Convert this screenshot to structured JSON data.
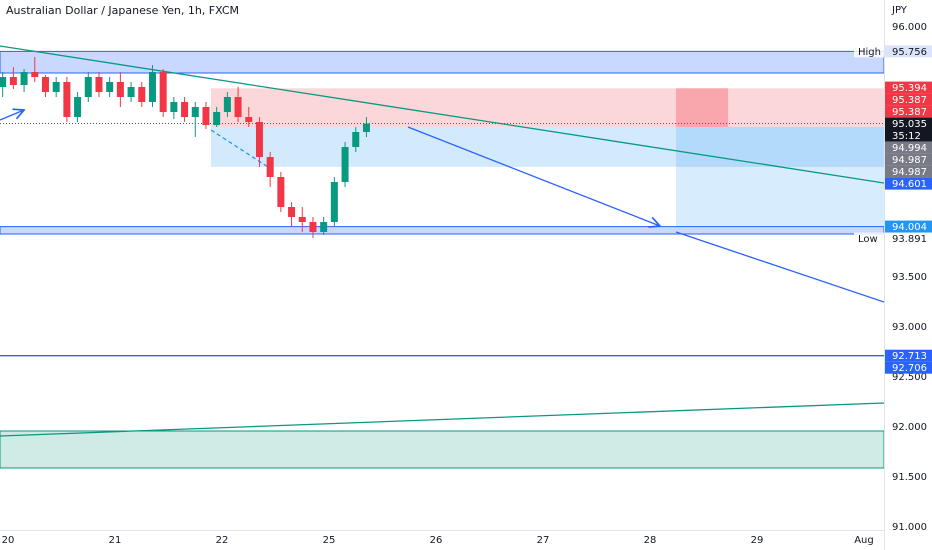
{
  "chart_data": {
    "type": "candlestick",
    "title": "Australian Dollar / Japanese Yen, 1h, FXCM",
    "currency": "JPY",
    "up_color": "#089981",
    "down_color": "#f23645",
    "xlim": [
      -0.075,
      8.187
    ],
    "ylim": [
      90.77,
      96.27
    ],
    "xticks": [
      {
        "value": 0,
        "label": "20"
      },
      {
        "value": 1,
        "label": "21"
      },
      {
        "value": 2,
        "label": "22"
      },
      {
        "value": 3,
        "label": "25"
      },
      {
        "value": 4,
        "label": "26"
      },
      {
        "value": 5,
        "label": "27"
      },
      {
        "value": 6,
        "label": "28"
      },
      {
        "value": 7,
        "label": "29"
      },
      {
        "value": 8,
        "label": "Aug"
      }
    ],
    "yticks": [
      {
        "value": 96,
        "label": "96.000"
      },
      {
        "value": 93.5,
        "label": "93.500"
      },
      {
        "value": 93,
        "label": "93.000"
      },
      {
        "value": 92.5,
        "label": "92.500"
      },
      {
        "value": 92,
        "label": "92.000"
      },
      {
        "value": 91.5,
        "label": "91.500"
      },
      {
        "value": 91,
        "label": "91.000"
      }
    ],
    "x": [
      -0.05,
      0.05,
      0.15,
      0.25,
      0.35,
      0.45,
      0.55,
      0.65,
      0.75,
      0.85,
      0.95,
      1.05,
      1.15,
      1.25,
      1.35,
      1.45,
      1.55,
      1.65,
      1.75,
      1.85,
      1.95,
      2.05,
      2.15,
      2.25,
      2.35,
      2.45,
      2.55,
      2.65,
      2.75,
      2.85,
      2.95,
      3.05,
      3.15,
      3.25,
      3.35
    ],
    "open": [
      95.4,
      95.5,
      95.42,
      95.55,
      95.5,
      95.35,
      95.45,
      95.1,
      95.3,
      95.5,
      95.35,
      95.45,
      95.3,
      95.4,
      95.25,
      95.55,
      95.15,
      95.25,
      95.1,
      95.2,
      95.02,
      95.15,
      95.3,
      95.1,
      95.05,
      94.7,
      94.5,
      94.2,
      94.1,
      94.05,
      93.95,
      94.05,
      94.45,
      94.8,
      94.95
    ],
    "high": [
      95.55,
      95.6,
      95.58,
      95.7,
      95.52,
      95.5,
      95.5,
      95.35,
      95.55,
      95.55,
      95.5,
      95.55,
      95.45,
      95.45,
      95.62,
      95.58,
      95.3,
      95.3,
      95.25,
      95.25,
      95.2,
      95.35,
      95.4,
      95.2,
      95.1,
      94.75,
      94.55,
      94.25,
      94.2,
      94.1,
      94.1,
      94.5,
      94.85,
      95.0,
      95.1
    ],
    "low": [
      95.3,
      95.38,
      95.35,
      95.45,
      95.3,
      95.3,
      95.05,
      95.05,
      95.25,
      95.3,
      95.3,
      95.2,
      95.25,
      95.2,
      95.2,
      95.1,
      95.08,
      95.05,
      94.9,
      94.98,
      95.0,
      95.1,
      95.05,
      95.0,
      94.6,
      94.4,
      94.15,
      94.0,
      93.95,
      93.891,
      93.92,
      94.0,
      94.4,
      94.75,
      94.9
    ],
    "close": [
      95.5,
      95.42,
      95.55,
      95.5,
      95.35,
      95.45,
      95.1,
      95.3,
      95.5,
      95.35,
      95.45,
      95.3,
      95.4,
      95.25,
      95.55,
      95.15,
      95.25,
      95.1,
      95.2,
      95.02,
      95.15,
      95.3,
      95.1,
      95.05,
      94.7,
      94.5,
      94.2,
      94.1,
      94.05,
      93.95,
      94.05,
      94.45,
      94.8,
      94.95,
      95.035
    ],
    "drawings": [
      {
        "type": "rect",
        "x1": -0.075,
        "x2": 8.187,
        "y1": 95.54,
        "y2": 95.756,
        "fill": "rgba(41,98,255,0.25)",
        "stroke": "#2962ff"
      },
      {
        "type": "rect",
        "x1": 1.897,
        "x2": 8.187,
        "y1": 95.0,
        "y2": 95.387,
        "fill": "rgba(242,54,69,0.2)"
      },
      {
        "type": "rect",
        "x1": 1.897,
        "x2": 8.187,
        "y1": 94.601,
        "y2": 95.0,
        "fill": "rgba(33,150,243,0.2)"
      },
      {
        "type": "rect",
        "x1": 6.243,
        "x2": 6.729,
        "y1": 95.0,
        "y2": 95.387,
        "fill": "rgba(242,54,69,0.3)"
      },
      {
        "type": "rect",
        "x1": 6.243,
        "x2": 8.187,
        "y1": 94.004,
        "y2": 95.0,
        "fill": "rgba(33,150,243,0.18)"
      },
      {
        "type": "rect",
        "x1": -0.075,
        "x2": 8.187,
        "y1": 93.93,
        "y2": 94.004,
        "fill": "rgba(41,98,255,0.25)",
        "stroke": "#2962ff"
      },
      {
        "type": "rect",
        "x1": -0.075,
        "x2": 8.187,
        "y1": 91.59,
        "y2": 91.96,
        "fill": "rgba(8,153,129,0.2)",
        "stroke": "#089981"
      },
      {
        "type": "line",
        "x1": -0.075,
        "x2": 8.187,
        "y1": 95.81,
        "y2": 94.44,
        "stroke": "#089981"
      },
      {
        "type": "line",
        "x1": -0.075,
        "x2": 8.187,
        "y1": 92.713,
        "y2": 92.713,
        "stroke": "#2962ff"
      },
      {
        "type": "line",
        "x1": -0.075,
        "x2": 8.187,
        "y1": 91.91,
        "y2": 92.24,
        "stroke": "#089981"
      },
      {
        "type": "arrow",
        "x1": 3.738,
        "x2": 6.093,
        "y1": 95.0,
        "y2": 94.01,
        "stroke": "#2962ff"
      },
      {
        "type": "line",
        "x1": 6.243,
        "x2": 8.187,
        "y1": 93.95,
        "y2": 93.25,
        "stroke": "#2962ff"
      },
      {
        "type": "arrow",
        "x1": -0.075,
        "x2": 0.15,
        "y1": 95.07,
        "y2": 95.17,
        "stroke": "#2962ff"
      },
      {
        "type": "dashed",
        "x1": 1.897,
        "x2": 2.43,
        "y1": 94.97,
        "y2": 94.6,
        "stroke": "#2196f3"
      },
      {
        "type": "dotted",
        "x1": -0.075,
        "x2": 8.187,
        "y1": 95.035,
        "y2": 95.035,
        "stroke": "#555"
      }
    ],
    "badges": [
      {
        "value": 95.756,
        "bg": "#dbe4fb",
        "fg": "#131722",
        "tag": "High"
      },
      {
        "value": 95.394,
        "bg": "#f23645",
        "fg": "#fff"
      },
      {
        "value": 95.387,
        "bg": "#f23645",
        "fg": "#fff"
      },
      {
        "value": 95.387,
        "bg": "#f23645",
        "fg": "#fff"
      },
      {
        "value": 95.035,
        "bg": "#131722",
        "fg": "#fff",
        "countdown": "35:12"
      },
      {
        "value": 94.994,
        "bg": "#787b86",
        "fg": "#fff"
      },
      {
        "value": 94.987,
        "bg": "#787b86",
        "fg": "#fff"
      },
      {
        "value": 94.987,
        "bg": "#787b86",
        "fg": "#fff"
      },
      {
        "value": 94.601,
        "bg": "#2962ff",
        "fg": "#fff"
      },
      {
        "value": 94.004,
        "bg": "#2196f3",
        "fg": "#fff"
      },
      {
        "value": 93.891,
        "bg": "#ffffff",
        "fg": "#131722",
        "tag": "Low"
      },
      {
        "value": 92.713,
        "bg": "#2962ff",
        "fg": "#fff"
      },
      {
        "value": 92.706,
        "bg": "#2962ff",
        "fg": "#fff"
      }
    ]
  }
}
